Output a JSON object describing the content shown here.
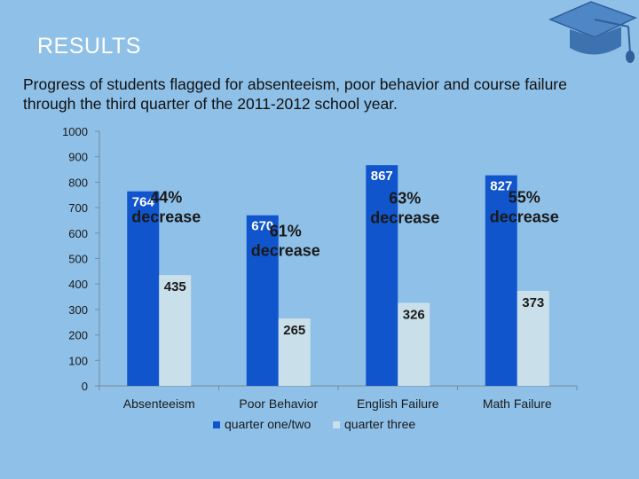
{
  "slide": {
    "title": "RESULTS",
    "subtitle": "Progress of students flagged for absenteeism, poor behavior and course failure through the third quarter of the 2011-2012 school year."
  },
  "colors": {
    "background": "#8ec0e8",
    "series_q12": "#1155cc",
    "series_q3": "#c9e0ea",
    "axis": "#7a8a99"
  },
  "chart_data": {
    "type": "bar",
    "categories": [
      "Absenteeism",
      "Poor Behavior",
      "English Failure",
      "Math Failure"
    ],
    "series": [
      {
        "name": "quarter one/two",
        "values": [
          764,
          670,
          867,
          827
        ]
      },
      {
        "name": "quarter three",
        "values": [
          435,
          265,
          326,
          373
        ]
      }
    ],
    "ylim": [
      0,
      1000
    ],
    "yticks": [
      0,
      100,
      200,
      300,
      400,
      500,
      600,
      700,
      800,
      900,
      1000
    ],
    "grid": false,
    "legend_position": "bottom",
    "annotations": [
      {
        "category": "Absenteeism",
        "lines": [
          "44%",
          "decrease"
        ]
      },
      {
        "category": "Poor Behavior",
        "lines": [
          "61%",
          "decrease"
        ]
      },
      {
        "category": "English Failure",
        "lines": [
          "63%",
          "decrease"
        ]
      },
      {
        "category": "Math Failure",
        "lines": [
          "55%",
          "decrease"
        ]
      }
    ]
  }
}
